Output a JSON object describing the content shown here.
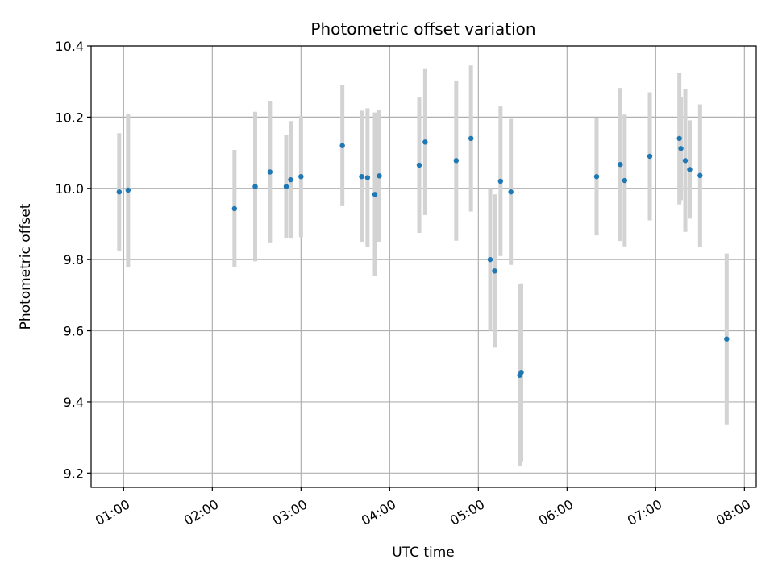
{
  "chart_data": {
    "type": "scatter",
    "title": "Photometric offset variation",
    "xlabel": "UTC time",
    "ylabel": "Photometric offset",
    "xlim": [
      "00:38",
      "08:08"
    ],
    "ylim": [
      9.16,
      10.4
    ],
    "x_ticks": [
      "01:00",
      "02:00",
      "03:00",
      "04:00",
      "05:00",
      "06:00",
      "07:00",
      "08:00"
    ],
    "y_ticks": [
      "9.2",
      "9.4",
      "9.6",
      "9.8",
      "10.0",
      "10.2",
      "10.4"
    ],
    "grid": true,
    "marker_color": "#1f77b4",
    "errorbar_color": "#d3d3d3",
    "points": [
      {
        "time": "00:57",
        "y": 9.99,
        "err": 0.165
      },
      {
        "time": "01:03",
        "y": 9.995,
        "err": 0.215
      },
      {
        "time": "02:15",
        "y": 9.943,
        "err": 0.165
      },
      {
        "time": "02:29",
        "y": 10.005,
        "err": 0.21
      },
      {
        "time": "02:39",
        "y": 10.046,
        "err": 0.2
      },
      {
        "time": "02:50",
        "y": 10.005,
        "err": 0.145
      },
      {
        "time": "02:53",
        "y": 10.024,
        "err": 0.165
      },
      {
        "time": "03:00",
        "y": 10.033,
        "err": 0.17
      },
      {
        "time": "03:28",
        "y": 10.12,
        "err": 0.17
      },
      {
        "time": "03:41",
        "y": 10.033,
        "err": 0.185
      },
      {
        "time": "03:45",
        "y": 10.03,
        "err": 0.195
      },
      {
        "time": "03:50",
        "y": 9.983,
        "err": 0.23
      },
      {
        "time": "03:53",
        "y": 10.035,
        "err": 0.185
      },
      {
        "time": "04:20",
        "y": 10.065,
        "err": 0.19
      },
      {
        "time": "04:24",
        "y": 10.13,
        "err": 0.205
      },
      {
        "time": "04:45",
        "y": 10.078,
        "err": 0.225
      },
      {
        "time": "04:55",
        "y": 10.14,
        "err": 0.205
      },
      {
        "time": "05:08",
        "y": 9.8,
        "err": 0.2
      },
      {
        "time": "05:11",
        "y": 9.768,
        "err": 0.215
      },
      {
        "time": "05:15",
        "y": 10.02,
        "err": 0.21
      },
      {
        "time": "05:22",
        "y": 9.99,
        "err": 0.205
      },
      {
        "time": "05:28",
        "y": 9.475,
        "err": 0.255
      },
      {
        "time": "05:29",
        "y": 9.483,
        "err": 0.25
      },
      {
        "time": "06:20",
        "y": 10.033,
        "err": 0.165
      },
      {
        "time": "06:36",
        "y": 10.067,
        "err": 0.215
      },
      {
        "time": "06:39",
        "y": 10.022,
        "err": 0.185
      },
      {
        "time": "06:56",
        "y": 10.09,
        "err": 0.18
      },
      {
        "time": "07:16",
        "y": 10.14,
        "err": 0.185
      },
      {
        "time": "07:17",
        "y": 10.112,
        "err": 0.145
      },
      {
        "time": "07:20",
        "y": 10.078,
        "err": 0.2
      },
      {
        "time": "07:23",
        "y": 10.053,
        "err": 0.138
      },
      {
        "time": "07:30",
        "y": 10.036,
        "err": 0.2
      },
      {
        "time": "07:48",
        "y": 9.577,
        "err": 0.24
      }
    ]
  }
}
